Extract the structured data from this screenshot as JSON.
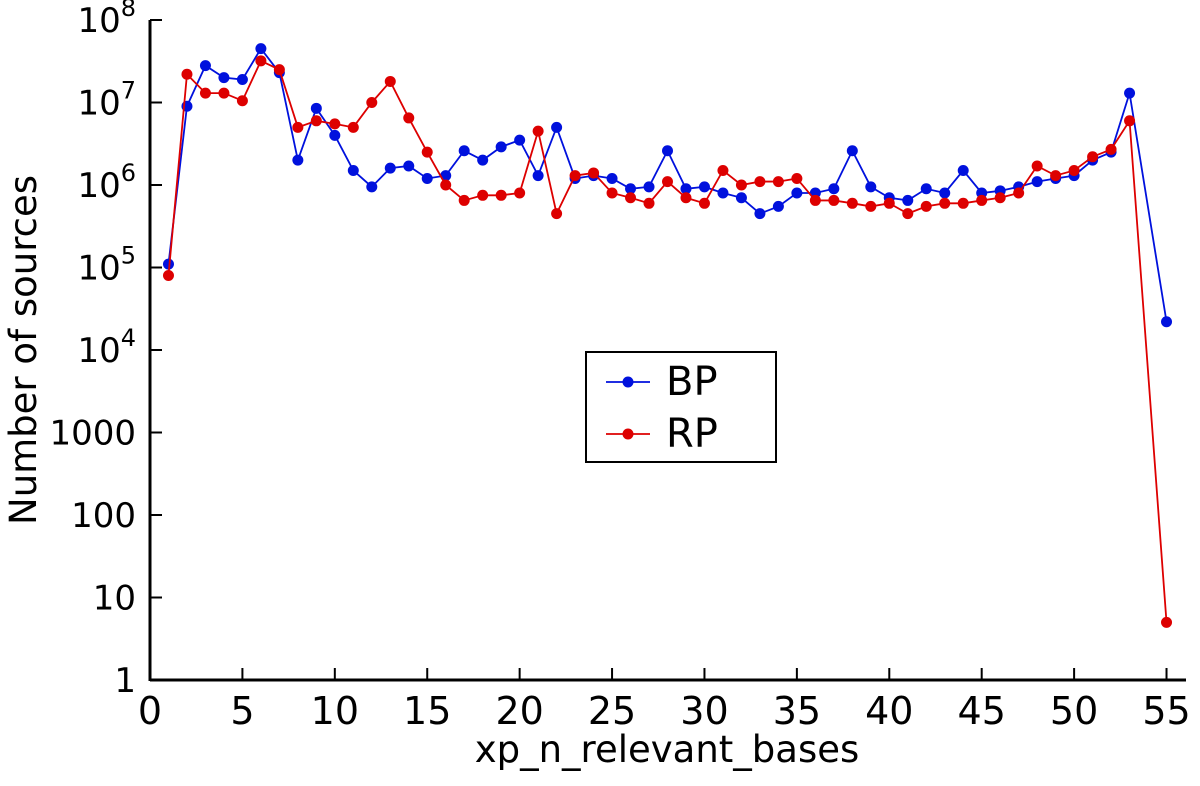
{
  "chart_data": {
    "type": "line",
    "title": "",
    "xlabel": "xp_n_relevant_bases",
    "ylabel": "Number of sources",
    "xlim": [
      0,
      56
    ],
    "ylim": [
      1,
      100000000
    ],
    "y_scale": "log",
    "grid": false,
    "legend_position": "center",
    "x_ticks": [
      0,
      5,
      10,
      15,
      20,
      25,
      30,
      35,
      40,
      45,
      50,
      55
    ],
    "y_ticks": [
      {
        "value": 1,
        "text": "1"
      },
      {
        "value": 10,
        "text": "10"
      },
      {
        "value": 100,
        "text": "100"
      },
      {
        "value": 1000,
        "text": "1000"
      },
      {
        "value": 10000,
        "text": "10",
        "sup": "4"
      },
      {
        "value": 100000,
        "text": "10",
        "sup": "5"
      },
      {
        "value": 1000000,
        "text": "10",
        "sup": "6"
      },
      {
        "value": 10000000,
        "text": "10",
        "sup": "7"
      },
      {
        "value": 100000000,
        "text": "10",
        "sup": "8"
      }
    ],
    "legend": {
      "entries": [
        {
          "name": "BP",
          "color": "#0011dd"
        },
        {
          "name": "RP",
          "color": "#dd0000"
        }
      ]
    },
    "series": [
      {
        "name": "BP",
        "color": "#0011dd",
        "points": [
          [
            1,
            110000
          ],
          [
            2,
            9000000
          ],
          [
            3,
            28000000
          ],
          [
            4,
            20000000
          ],
          [
            5,
            19000000
          ],
          [
            6,
            45000000
          ],
          [
            7,
            23000000
          ],
          [
            8,
            2000000
          ],
          [
            9,
            8500000
          ],
          [
            10,
            4000000
          ],
          [
            11,
            1500000
          ],
          [
            12,
            950000
          ],
          [
            13,
            1600000
          ],
          [
            14,
            1700000
          ],
          [
            15,
            1200000
          ],
          [
            16,
            1300000
          ],
          [
            17,
            2600000
          ],
          [
            18,
            2000000
          ],
          [
            19,
            2900000
          ],
          [
            20,
            3500000
          ],
          [
            21,
            1300000
          ],
          [
            22,
            5000000
          ],
          [
            23,
            1200000
          ],
          [
            24,
            1300000
          ],
          [
            25,
            1200000
          ],
          [
            26,
            900000
          ],
          [
            27,
            950000
          ],
          [
            28,
            2600000
          ],
          [
            29,
            900000
          ],
          [
            30,
            950000
          ],
          [
            31,
            800000
          ],
          [
            32,
            700000
          ],
          [
            33,
            450000
          ],
          [
            34,
            550000
          ],
          [
            35,
            800000
          ],
          [
            36,
            800000
          ],
          [
            37,
            900000
          ],
          [
            38,
            2600000
          ],
          [
            39,
            950000
          ],
          [
            40,
            700000
          ],
          [
            41,
            650000
          ],
          [
            42,
            900000
          ],
          [
            43,
            800000
          ],
          [
            44,
            1500000
          ],
          [
            45,
            800000
          ],
          [
            46,
            850000
          ],
          [
            47,
            950000
          ],
          [
            48,
            1100000
          ],
          [
            49,
            1200000
          ],
          [
            50,
            1300000
          ],
          [
            51,
            2000000
          ],
          [
            52,
            2500000
          ],
          [
            53,
            13000000
          ],
          [
            55,
            22000
          ]
        ]
      },
      {
        "name": "RP",
        "color": "#dd0000",
        "points": [
          [
            1,
            80000
          ],
          [
            2,
            22000000
          ],
          [
            3,
            13000000
          ],
          [
            4,
            13000000
          ],
          [
            5,
            10500000
          ],
          [
            6,
            32000000
          ],
          [
            7,
            25000000
          ],
          [
            8,
            5000000
          ],
          [
            9,
            6000000
          ],
          [
            10,
            5500000
          ],
          [
            11,
            5000000
          ],
          [
            12,
            10000000
          ],
          [
            13,
            18000000
          ],
          [
            14,
            6500000
          ],
          [
            15,
            2500000
          ],
          [
            16,
            1000000
          ],
          [
            17,
            650000
          ],
          [
            18,
            750000
          ],
          [
            19,
            750000
          ],
          [
            20,
            800000
          ],
          [
            21,
            4500000
          ],
          [
            22,
            450000
          ],
          [
            23,
            1300000
          ],
          [
            24,
            1400000
          ],
          [
            25,
            800000
          ],
          [
            26,
            700000
          ],
          [
            27,
            600000
          ],
          [
            28,
            1100000
          ],
          [
            29,
            700000
          ],
          [
            30,
            600000
          ],
          [
            31,
            1500000
          ],
          [
            32,
            1000000
          ],
          [
            33,
            1100000
          ],
          [
            34,
            1100000
          ],
          [
            35,
            1200000
          ],
          [
            36,
            650000
          ],
          [
            37,
            650000
          ],
          [
            38,
            600000
          ],
          [
            39,
            550000
          ],
          [
            40,
            600000
          ],
          [
            41,
            450000
          ],
          [
            42,
            550000
          ],
          [
            43,
            600000
          ],
          [
            44,
            600000
          ],
          [
            45,
            650000
          ],
          [
            46,
            700000
          ],
          [
            47,
            800000
          ],
          [
            48,
            1700000
          ],
          [
            49,
            1300000
          ],
          [
            50,
            1500000
          ],
          [
            51,
            2200000
          ],
          [
            52,
            2700000
          ],
          [
            53,
            6000000
          ],
          [
            55,
            5
          ]
        ]
      }
    ]
  }
}
